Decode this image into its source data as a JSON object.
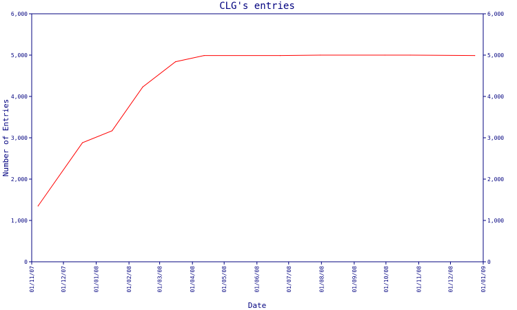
{
  "chart_data": {
    "type": "line",
    "title": "CLG's entries",
    "xlabel": "Date",
    "ylabel": "Number of Entries",
    "ylim": [
      0,
      6000
    ],
    "y_ticks": [
      0,
      1000,
      2000,
      3000,
      4000,
      5000,
      6000
    ],
    "y_tick_labels": [
      "0",
      "1,000",
      "2,000",
      "3,000",
      "4,000",
      "5,000",
      "6,000"
    ],
    "x_tick_labels": [
      "01/11/07",
      "01/12/07",
      "01/01/08",
      "01/02/08",
      "01/03/08",
      "01/04/08",
      "01/05/08",
      "01/06/08",
      "01/07/08",
      "01/08/08",
      "01/09/08",
      "01/10/08",
      "01/11/08",
      "01/12/08",
      "01/01/09"
    ],
    "grid": false,
    "line_color": "#ff0000",
    "axis_color": "#00007f",
    "series": [
      {
        "x": [
          "2007-11-07",
          "2007-12-19",
          "2008-01-16",
          "2008-02-14",
          "2008-03-16",
          "2008-04-12",
          "2008-06-23",
          "2008-07-31",
          "2008-09-30",
          "2008-10-24",
          "2008-12-24"
        ],
        "values": [
          1350,
          2880,
          3170,
          4230,
          4840,
          4990,
          4990,
          5000,
          5000,
          5000,
          4990
        ]
      }
    ]
  }
}
